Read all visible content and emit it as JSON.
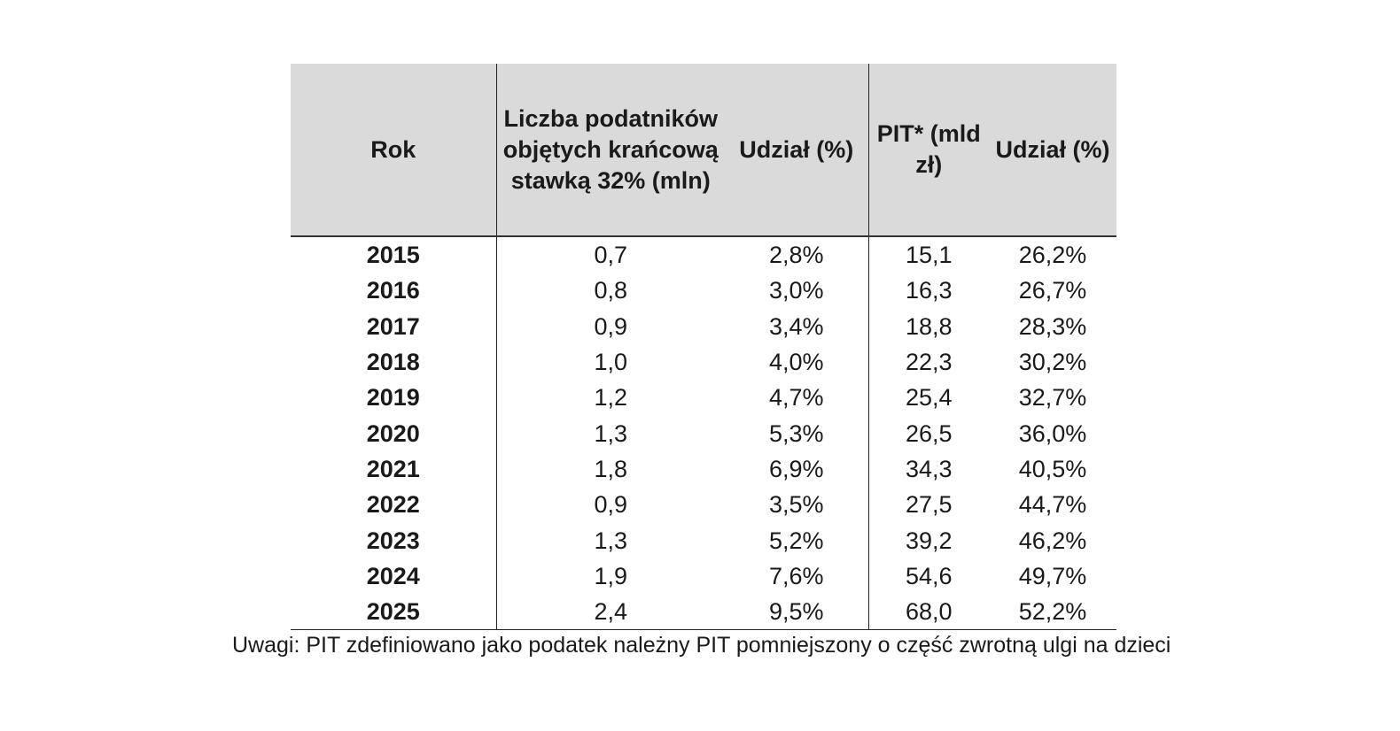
{
  "table": {
    "headers": {
      "year": "Rok",
      "count": "Liczba podatników objętych krańcową stawką 32% (mln)",
      "share1": "Udział (%)",
      "pit": "PIT* (mld zł)",
      "share2": "Udział (%)"
    },
    "rows": [
      {
        "year": "2015",
        "count": "0,7",
        "share1": "2,8%",
        "pit": "15,1",
        "share2": "26,2%"
      },
      {
        "year": "2016",
        "count": "0,8",
        "share1": "3,0%",
        "pit": "16,3",
        "share2": "26,7%"
      },
      {
        "year": "2017",
        "count": "0,9",
        "share1": "3,4%",
        "pit": "18,8",
        "share2": "28,3%"
      },
      {
        "year": "2018",
        "count": "1,0",
        "share1": "4,0%",
        "pit": "22,3",
        "share2": "30,2%"
      },
      {
        "year": "2019",
        "count": "1,2",
        "share1": "4,7%",
        "pit": "25,4",
        "share2": "32,7%"
      },
      {
        "year": "2020",
        "count": "1,3",
        "share1": "5,3%",
        "pit": "26,5",
        "share2": "36,0%"
      },
      {
        "year": "2021",
        "count": "1,8",
        "share1": "6,9%",
        "pit": "34,3",
        "share2": "40,5%"
      },
      {
        "year": "2022",
        "count": "0,9",
        "share1": "3,5%",
        "pit": "27,5",
        "share2": "44,7%"
      },
      {
        "year": "2023",
        "count": "1,3",
        "share1": "5,2%",
        "pit": "39,2",
        "share2": "46,2%"
      },
      {
        "year": "2024",
        "count": "1,9",
        "share1": "7,6%",
        "pit": "54,6",
        "share2": "49,7%"
      },
      {
        "year": "2025",
        "count": "2,4",
        "share1": "9,5%",
        "pit": "68,0",
        "share2": "52,2%"
      }
    ]
  },
  "note": "Uwagi: PIT zdefiniowano jako podatek należny PIT pomniejszony o część zwrotną ulgi na dzieci"
}
